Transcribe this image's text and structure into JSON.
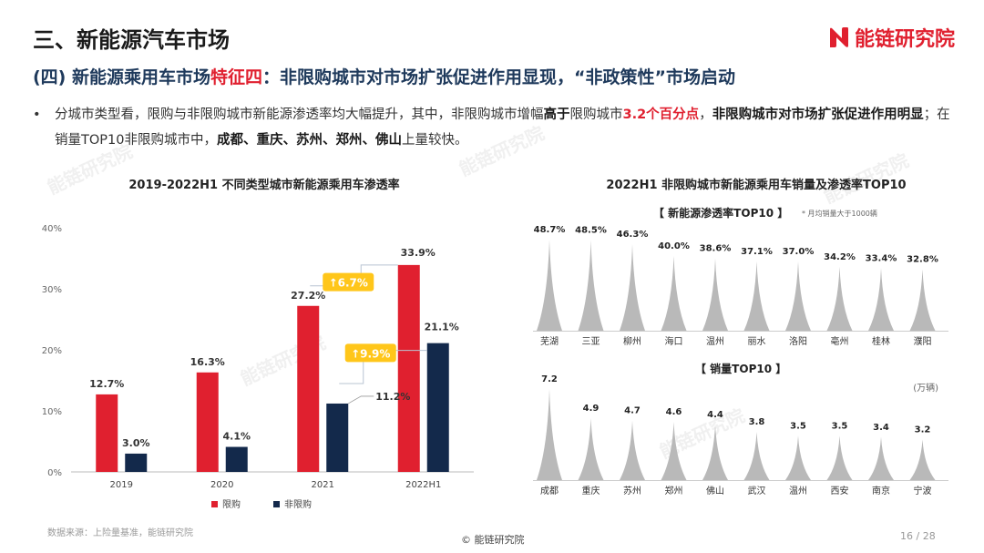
{
  "section_title": "三、新能源汽车市场",
  "logo_text": "能链研究院",
  "subtitle": {
    "part1": "(四) 新能源乘用车市场",
    "part2": "特征四",
    "part3": "：非限购城市对市场扩张促进作用显现，“非政策性”市场启动"
  },
  "bullet": {
    "dot": "•",
    "t1": "分城市类型看，限购与非限购城市新能源渗透率均大幅提升，其中，非限购城市增幅",
    "t2": "高于",
    "t3": "限购城市",
    "t4": "3.2个百分点",
    "t5": "，",
    "t6": "非限购城市对市场扩张促进作用明显",
    "t7": "；在销量TOP10非限购城市中，",
    "t8": "成都、重庆、苏州、郑州、佛山",
    "t9": "上量较快。"
  },
  "colors": {
    "red": "#e0202f",
    "navy": "#13294b",
    "yellow": "#ffc61a",
    "gray": "#b9b9b9"
  },
  "chart_data": [
    {
      "type": "bar",
      "title": "2019-2022H1 不同类型城市新能源乘用车渗透率",
      "categories": [
        "2019",
        "2020",
        "2021",
        "2022H1"
      ],
      "series": [
        {
          "name": "限购",
          "values": [
            12.7,
            16.3,
            27.2,
            33.9
          ],
          "labels": [
            "12.7%",
            "16.3%",
            "27.2%",
            "33.9%"
          ]
        },
        {
          "name": "非限购",
          "values": [
            3.0,
            4.1,
            11.2,
            21.1
          ],
          "labels": [
            "3.0%",
            "4.1%",
            "11.2%",
            "21.1%"
          ]
        }
      ],
      "y_ticks": [
        "0%",
        "10%",
        "20%",
        "30%",
        "40%"
      ],
      "ylim": [
        0,
        40
      ],
      "legend": "bottom",
      "grid": false,
      "annotations": [
        "↑6.7%",
        "↑9.9%"
      ]
    },
    {
      "type": "area",
      "title": "2022H1 非限购城市新能源乘用车销量及渗透率TOP10",
      "subtitle": "【 新能源渗透率TOP10 】",
      "note": "* 月均销量大于1000辆",
      "categories": [
        "芜湖",
        "三亚",
        "柳州",
        "海口",
        "温州",
        "丽水",
        "洛阳",
        "亳州",
        "桂林",
        "濮阳"
      ],
      "values": [
        48.7,
        48.5,
        46.3,
        40.0,
        38.6,
        37.1,
        37.0,
        34.2,
        33.4,
        32.8
      ],
      "labels": [
        "48.7%",
        "48.5%",
        "46.3%",
        "40.0%",
        "38.6%",
        "37.1%",
        "37.0%",
        "34.2%",
        "33.4%",
        "32.8%"
      ]
    },
    {
      "type": "area",
      "subtitle": "【 销量TOP10 】",
      "unit": "(万辆)",
      "categories": [
        "成都",
        "重庆",
        "苏州",
        "郑州",
        "佛山",
        "武汉",
        "温州",
        "西安",
        "南京",
        "宁波"
      ],
      "values": [
        7.2,
        4.9,
        4.7,
        4.6,
        4.4,
        3.8,
        3.5,
        3.5,
        3.4,
        3.2
      ],
      "labels": [
        "7.2",
        "4.9",
        "4.7",
        "4.6",
        "4.4",
        "3.8",
        "3.5",
        "3.5",
        "3.4",
        "3.2"
      ]
    }
  ],
  "footer": {
    "source": "数据来源：上险量基准，能链研究院",
    "copyright": "© 能链研究院",
    "page": "16 / 28"
  }
}
